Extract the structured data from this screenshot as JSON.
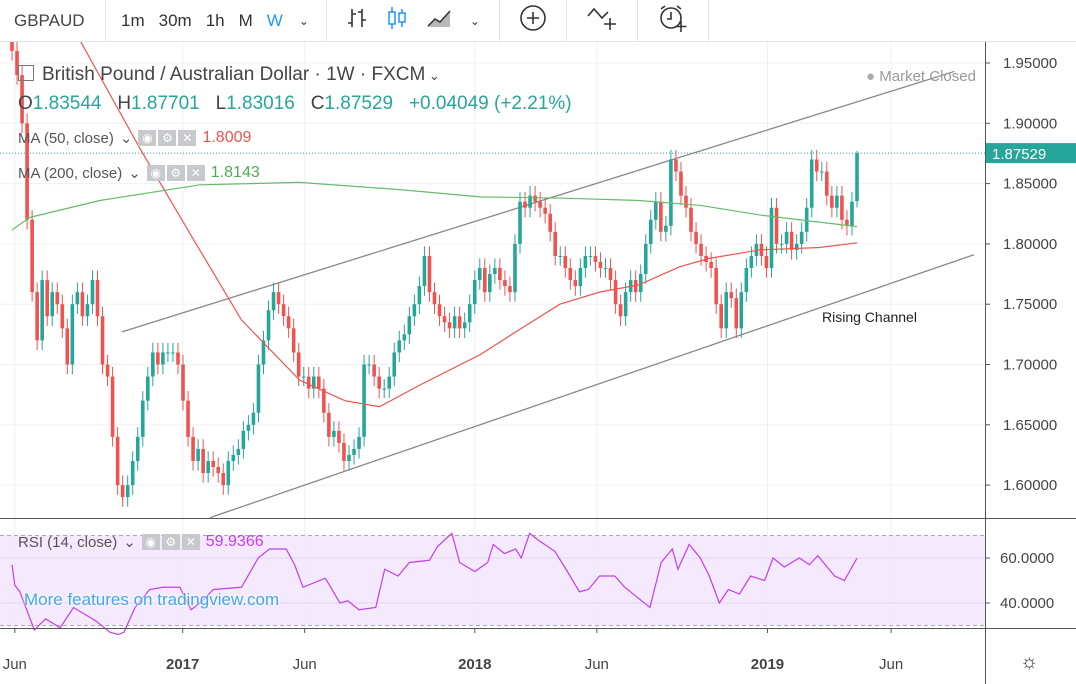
{
  "toolbar": {
    "symbol": "GBPAUD",
    "intervals": [
      "1m",
      "30m",
      "1h",
      "M",
      "W"
    ],
    "active_interval": "W",
    "icons": [
      "chevron-down-icon",
      "bar-chart-icon",
      "candles-icon",
      "area-chart-icon",
      "chevron-down-icon",
      "add-icon",
      "indicator-add-icon",
      "alert-add-icon"
    ]
  },
  "legend": {
    "title": "British Pound / Australian Dollar · 1W · FXCM",
    "o_label": "O",
    "o": "1.83544",
    "h_label": "H",
    "h": "1.87701",
    "l_label": "L",
    "l": "1.83016",
    "c_label": "C",
    "c": "1.87529",
    "change": "+0.04049 (+2.21%)",
    "market_status": "Market Closed"
  },
  "indicators": {
    "ma50": {
      "label": "MA (50, close)",
      "value": "1.8009",
      "color": "#ef5350"
    },
    "ma200": {
      "label": "MA (200, close)",
      "value": "1.8143",
      "color": "#66bb6a"
    },
    "rsi": {
      "label": "RSI (14, close)",
      "value": "59.9366",
      "color": "#c13ef0"
    }
  },
  "annotation": "Rising Channel",
  "watermark": "More features on tradingview.com",
  "chart_data": {
    "type": "candlestick",
    "timeframe": "1W",
    "colors": {
      "up": "#26a69a",
      "down": "#ef5350",
      "last_price": "#26a69a"
    },
    "ylim": [
      1.57,
      1.97
    ],
    "price_ticks": [
      "1.95000",
      "1.90000",
      "1.85000",
      "1.80000",
      "1.75000",
      "1.70000",
      "1.65000",
      "1.60000"
    ],
    "last_price": "1.87529",
    "last_candle": {
      "open": 1.83544,
      "high": 1.87701,
      "low": 1.83016,
      "close": 1.87529
    },
    "first_open": 1.97,
    "closes": [
      1.96,
      1.94,
      1.9,
      1.82,
      1.76,
      1.72,
      1.77,
      1.74,
      1.76,
      1.75,
      1.73,
      1.7,
      1.75,
      1.76,
      1.74,
      1.75,
      1.77,
      1.74,
      1.7,
      1.69,
      1.64,
      1.6,
      1.59,
      1.6,
      1.62,
      1.64,
      1.67,
      1.69,
      1.71,
      1.7,
      1.71,
      1.71,
      1.71,
      1.7,
      1.67,
      1.64,
      1.62,
      1.63,
      1.61,
      1.62,
      1.615,
      1.61,
      1.6,
      1.62,
      1.625,
      1.63,
      1.645,
      1.65,
      1.66,
      1.7,
      1.72,
      1.745,
      1.76,
      1.75,
      1.74,
      1.73,
      1.71,
      1.69,
      1.69,
      1.68,
      1.69,
      1.68,
      1.66,
      1.64,
      1.645,
      1.635,
      1.62,
      1.625,
      1.63,
      1.64,
      1.7,
      1.7,
      1.69,
      1.68,
      1.68,
      1.69,
      1.71,
      1.72,
      1.725,
      1.74,
      1.75,
      1.765,
      1.79,
      1.76,
      1.75,
      1.74,
      1.735,
      1.73,
      1.74,
      1.73,
      1.735,
      1.75,
      1.77,
      1.78,
      1.76,
      1.775,
      1.78,
      1.77,
      1.765,
      1.76,
      1.8,
      1.835,
      1.83,
      1.84,
      1.835,
      1.83,
      1.825,
      1.81,
      1.79,
      1.79,
      1.78,
      1.77,
      1.765,
      1.78,
      1.79,
      1.79,
      1.785,
      1.78,
      1.78,
      1.77,
      1.75,
      1.74,
      1.76,
      1.77,
      1.76,
      1.775,
      1.8,
      1.82,
      1.835,
      1.81,
      1.815,
      1.87,
      1.86,
      1.84,
      1.83,
      1.81,
      1.8,
      1.79,
      1.785,
      1.78,
      1.75,
      1.73,
      1.76,
      1.755,
      1.73,
      1.76,
      1.78,
      1.79,
      1.8,
      1.79,
      1.78,
      1.83,
      1.8,
      1.8,
      1.81,
      1.795,
      1.8,
      1.81,
      1.83,
      1.87,
      1.86,
      1.86,
      1.84,
      1.83,
      1.84,
      1.82,
      1.815,
      1.835,
      1.87529
    ],
    "ma50": [
      [
        12,
        1.97
      ],
      [
        23,
        1.878
      ],
      [
        32,
        1.807
      ],
      [
        41,
        1.737
      ],
      [
        51.4,
        1.687
      ],
      [
        59.5,
        1.67
      ],
      [
        65.7,
        1.665
      ],
      [
        72.9,
        1.683
      ],
      [
        83.6,
        1.708
      ],
      [
        90.7,
        1.729
      ],
      [
        97.9,
        1.75
      ],
      [
        105,
        1.76
      ],
      [
        112,
        1.766
      ],
      [
        119.3,
        1.781
      ],
      [
        124.6,
        1.788
      ],
      [
        133.6,
        1.795
      ],
      [
        144.3,
        1.797
      ],
      [
        151,
        1.8009
      ]
    ],
    "ma200": [
      [
        0,
        1.8115
      ],
      [
        3.2,
        1.822
      ],
      [
        15.7,
        1.836
      ],
      [
        33.6,
        1.849
      ],
      [
        51.4,
        1.851
      ],
      [
        69.3,
        1.845
      ],
      [
        83.6,
        1.839
      ],
      [
        97.9,
        1.838
      ],
      [
        112,
        1.836
      ],
      [
        122.9,
        1.832
      ],
      [
        133.6,
        1.824
      ],
      [
        140.7,
        1.82
      ],
      [
        151,
        1.8143
      ]
    ],
    "channel": {
      "label": "Rising Channel",
      "upper": [
        [
          19.6,
          1.727
        ],
        [
          168.4,
          1.943
        ]
      ],
      "lower": [
        [
          35.4,
          1.573
        ],
        [
          171.9,
          1.791
        ]
      ]
    },
    "rsi": {
      "ylim": [
        25,
        75
      ],
      "ticks": [
        "60.0000",
        "40.0000"
      ],
      "bands": [
        30,
        70
      ],
      "points": [
        [
          0,
          57
        ],
        [
          0.5,
          48
        ],
        [
          1.4,
          45
        ],
        [
          4,
          28
        ],
        [
          6,
          33
        ],
        [
          8.6,
          29
        ],
        [
          11,
          38
        ],
        [
          13,
          35
        ],
        [
          15,
          32
        ],
        [
          17.5,
          27
        ],
        [
          19,
          26
        ],
        [
          20,
          27
        ],
        [
          22,
          38
        ],
        [
          24.6,
          46
        ],
        [
          27,
          47
        ],
        [
          30,
          47
        ],
        [
          32,
          37
        ],
        [
          33.6,
          40
        ],
        [
          36,
          46
        ],
        [
          41,
          47
        ],
        [
          44,
          60
        ],
        [
          46,
          64
        ],
        [
          49,
          64
        ],
        [
          50.5,
          57
        ],
        [
          52,
          47
        ],
        [
          56,
          51
        ],
        [
          58.6,
          40
        ],
        [
          60,
          41
        ],
        [
          62,
          37
        ],
        [
          65,
          38
        ],
        [
          66.6,
          55
        ],
        [
          69,
          52
        ],
        [
          71,
          58
        ],
        [
          74.6,
          59
        ],
        [
          76,
          65
        ],
        [
          78.6,
          71
        ],
        [
          80,
          58
        ],
        [
          82.7,
          54
        ],
        [
          85,
          58
        ],
        [
          86,
          66
        ],
        [
          88,
          62
        ],
        [
          90,
          64
        ],
        [
          91,
          60
        ],
        [
          92.5,
          71
        ],
        [
          94,
          68
        ],
        [
          97,
          63
        ],
        [
          99,
          55
        ],
        [
          101.4,
          45
        ],
        [
          103,
          46
        ],
        [
          105,
          52
        ],
        [
          107.7,
          52
        ],
        [
          109.5,
          47
        ],
        [
          114,
          38
        ],
        [
          116,
          58
        ],
        [
          118,
          64
        ],
        [
          119,
          55
        ],
        [
          121,
          66
        ],
        [
          123,
          60
        ],
        [
          124.6,
          52
        ],
        [
          126.4,
          40
        ],
        [
          128,
          46
        ],
        [
          130,
          44
        ],
        [
          132,
          52
        ],
        [
          134.5,
          50
        ],
        [
          136,
          60
        ],
        [
          138,
          56
        ],
        [
          140.7,
          60
        ],
        [
          142.5,
          57
        ],
        [
          144,
          61
        ],
        [
          147,
          52
        ],
        [
          148.75,
          50
        ],
        [
          151,
          59.94
        ]
      ]
    },
    "x_ticks": [
      {
        "label": "Jun",
        "week": 0.5,
        "bold": false
      },
      {
        "label": "2017",
        "week": 30.5,
        "bold": true
      },
      {
        "label": "Jun",
        "week": 52.3,
        "bold": false
      },
      {
        "label": "2018",
        "week": 82.7,
        "bold": true
      },
      {
        "label": "Jun",
        "week": 104.5,
        "bold": false
      },
      {
        "label": "2019",
        "week": 135,
        "bold": true
      },
      {
        "label": "Jun",
        "week": 157.1,
        "bold": false
      }
    ]
  }
}
